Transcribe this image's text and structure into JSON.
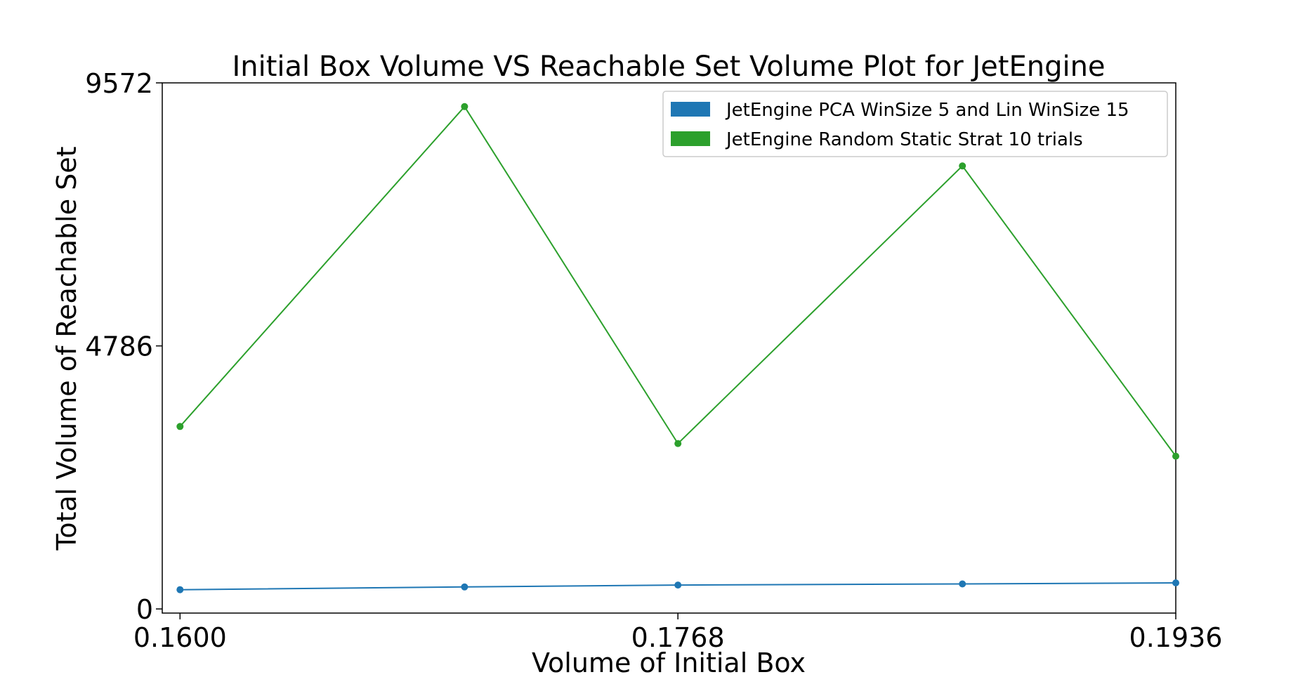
{
  "chart_data": {
    "type": "line",
    "title": "Initial Box Volume VS Reachable Set Volume Plot for JetEngine",
    "xlabel": "Volume of Initial Box",
    "ylabel": "Total Volume of Reachable Set",
    "x": [
      0.16,
      0.1696,
      0.1768,
      0.1864,
      0.1936
    ],
    "x_ticks": [
      "0.1600",
      "0.1768",
      "0.1936"
    ],
    "x_tick_values": [
      0.16,
      0.1768,
      0.1936
    ],
    "y_ticks": [
      "0",
      "4786",
      "9572"
    ],
    "y_tick_values": [
      0,
      4786,
      9572
    ],
    "xlim": [
      0.1594,
      0.1936
    ],
    "ylim": [
      -75,
      9572
    ],
    "grid": false,
    "legend_position": "top-right",
    "series": [
      {
        "name": "JetEngine PCA WinSize 5 and Lin WinSize 15",
        "color": "#1f77b4",
        "values": [
          350,
          400,
          435,
          455,
          475
        ]
      },
      {
        "name": "JetEngine Random Static  Strat 10 trials",
        "color": "#2ca02c",
        "values": [
          3320,
          9140,
          3010,
          8060,
          2780
        ]
      }
    ]
  }
}
